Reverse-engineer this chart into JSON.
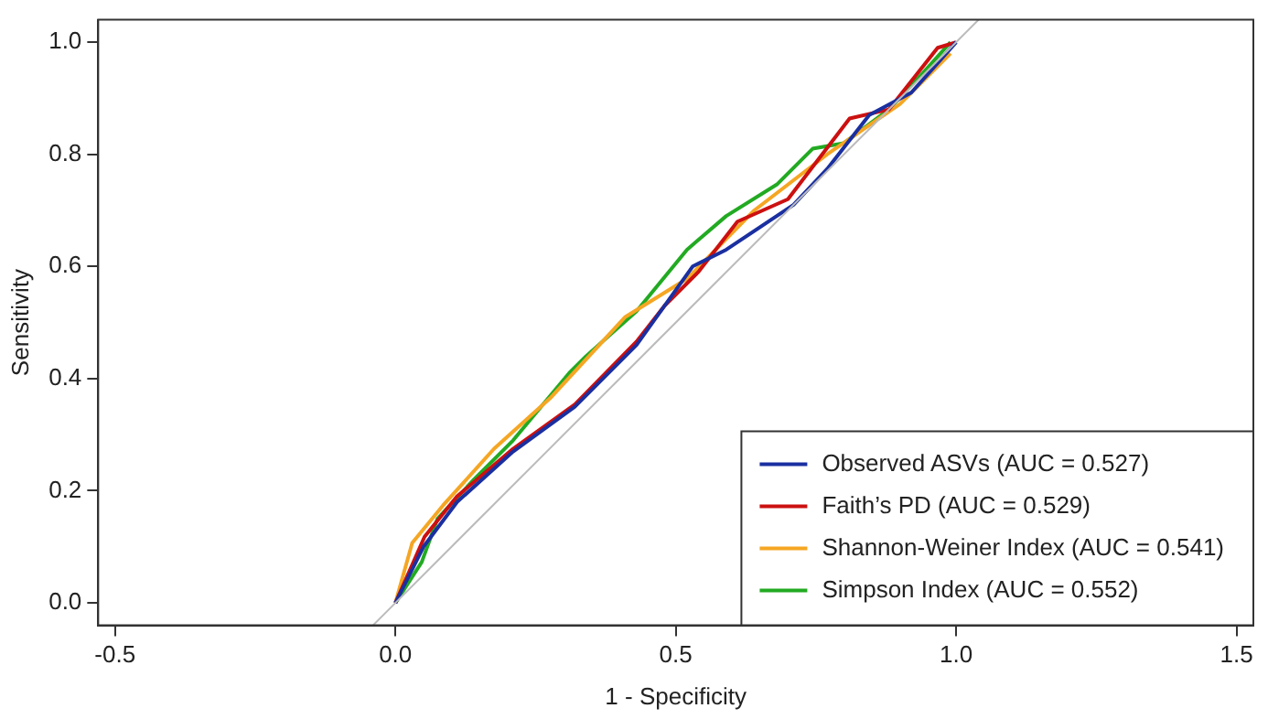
{
  "chart_data": {
    "type": "line",
    "xlabel": "1 - Specificity",
    "ylabel": "Sensitivity",
    "xlim": [
      -0.53,
      1.53
    ],
    "xticks": [
      {
        "value": -0.5,
        "label": "-0.5"
      },
      {
        "value": 0,
        "label": "0.0"
      },
      {
        "value": 0.5,
        "label": "0.5"
      },
      {
        "value": 1,
        "label": "1.0"
      },
      {
        "value": 1.5,
        "label": "1.5"
      }
    ],
    "ylim": [
      -0.04,
      1.04
    ],
    "yticks": [
      {
        "value": 0,
        "label": "0.0"
      },
      {
        "value": 0.2,
        "label": "0.2"
      },
      {
        "value": 0.4,
        "label": "0.4"
      },
      {
        "value": 0.6,
        "label": "0.6"
      },
      {
        "value": 0.8,
        "label": "0.8"
      },
      {
        "value": 1,
        "label": "1.0"
      }
    ],
    "grid": false,
    "legend": "bottom right",
    "marker": "none",
    "line_style": "solid",
    "series": [
      {
        "color": "#bbbbbb",
        "x": [
          -0.04,
          1.04
        ],
        "values": [
          -0.04,
          1.04
        ]
      },
      {
        "name": "Observed ASVs (AUC = 0.527)",
        "color": "#1a2fa0",
        "x": [
          0,
          0.05,
          0.11,
          0.21,
          0.32,
          0.43,
          0.53,
          0.59,
          0.71,
          0.77,
          0.845,
          0.92,
          1
        ],
        "values": [
          0,
          0.1,
          0.18,
          0.27,
          0.35,
          0.46,
          0.6,
          0.63,
          0.71,
          0.774,
          0.87,
          0.91,
          1
        ]
      },
      {
        "name": "Faith’s PD (AUC = 0.529)",
        "color": "#cc1010",
        "x": [
          0,
          0.052,
          0.11,
          0.21,
          0.32,
          0.43,
          0.48,
          0.54,
          0.61,
          0.7,
          0.81,
          0.88,
          0.967,
          1
        ],
        "values": [
          0,
          0.118,
          0.19,
          0.275,
          0.354,
          0.466,
          0.53,
          0.59,
          0.68,
          0.72,
          0.864,
          0.88,
          0.99,
          1
        ]
      },
      {
        "name": "Shannon-Weiner Index (AUC = 0.541)",
        "color": "#f5a623",
        "x": [
          0,
          0.03,
          0.085,
          0.176,
          0.276,
          0.41,
          0.52,
          0.64,
          0.77,
          0.9,
          0.99
        ],
        "values": [
          0,
          0.107,
          0.174,
          0.275,
          0.365,
          0.51,
          0.578,
          0.7,
          0.8,
          0.89,
          0.98
        ]
      },
      {
        "name": "Simpson Index (AUC = 0.552)",
        "color": "#22aa22",
        "x": [
          0,
          0.047,
          0.075,
          0.14,
          0.21,
          0.31,
          0.34,
          0.43,
          0.52,
          0.59,
          0.68,
          0.744,
          0.8,
          0.88,
          0.945,
          0.99
        ],
        "values": [
          0,
          0.073,
          0.15,
          0.22,
          0.29,
          0.41,
          0.44,
          0.52,
          0.63,
          0.69,
          0.746,
          0.81,
          0.82,
          0.88,
          0.95,
          1
        ]
      }
    ]
  }
}
